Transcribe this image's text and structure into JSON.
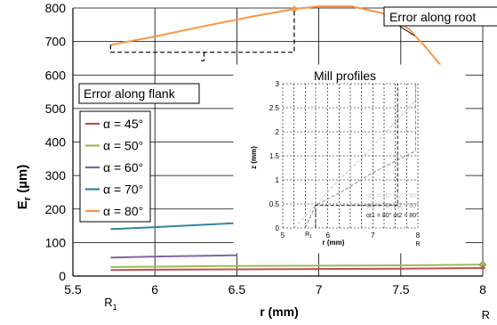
{
  "chart_data": [
    {
      "type": "line",
      "xlabel": "r (mm)",
      "ylabel": "Er (µm)",
      "ylabel_main": "E",
      "ylabel_sub": "r",
      "ylabel_unit": " (µm)",
      "xlim": [
        5.5,
        8.0
      ],
      "ylim": [
        0,
        800
      ],
      "x_ticks": [
        5.5,
        6,
        6.5,
        7,
        7.5,
        8
      ],
      "x_tick_labels": [
        "5.5",
        "6",
        "6.5",
        "7",
        "7.5",
        "8"
      ],
      "y_ticks": [
        0,
        100,
        200,
        300,
        400,
        500,
        600,
        700,
        800
      ],
      "y_tick_labels": [
        "0",
        "100",
        "200",
        "300",
        "400",
        "500",
        "600",
        "700",
        "800"
      ],
      "x_markers": [
        {
          "x": 5.73,
          "main": "R",
          "sub": "1"
        },
        {
          "x": 8.0,
          "main": "R",
          "sub": ""
        }
      ],
      "grid": true,
      "legend_position": "left",
      "series": [
        {
          "name": "α = 45°",
          "alpha_value": "45°",
          "color": "#c0504d",
          "x": [
            5.73,
            6.0,
            6.5,
            7.0,
            7.5,
            8.0
          ],
          "y": [
            18,
            19,
            20,
            21,
            22,
            24
          ]
        },
        {
          "name": "α = 50°",
          "alpha_value": "50°",
          "color": "#9bbb59",
          "x": [
            5.73,
            6.0,
            6.5,
            7.0,
            7.5,
            8.0
          ],
          "y": [
            27,
            28,
            30,
            31,
            32,
            34
          ]
        },
        {
          "name": "α = 60°",
          "alpha_value": "60°",
          "color": "#8064a2",
          "x": [
            5.73,
            6.0,
            6.5
          ],
          "y": [
            55,
            58,
            62
          ]
        },
        {
          "name": "α = 70°",
          "alpha_value": "70°",
          "color": "#31849b",
          "x": [
            5.73,
            6.0,
            6.5
          ],
          "y": [
            140,
            146,
            158
          ]
        },
        {
          "name": "α = 80°",
          "alpha_value": "80°",
          "color": "#f79646",
          "x": [
            5.73,
            6.0,
            6.3,
            6.6,
            6.85,
            7.0,
            7.2,
            7.4,
            7.55,
            7.65,
            7.75
          ],
          "y": [
            690,
            715,
            746,
            775,
            797,
            805,
            805,
            783,
            737,
            684,
            625
          ]
        }
      ],
      "annotations": [
        {
          "text": "Error along root"
        },
        {
          "text": "Error along flank"
        }
      ]
    },
    {
      "type": "line",
      "title": "Mill profiles",
      "xlabel": "r (mm)",
      "ylabel": "z (mm)",
      "xlim": [
        5.0,
        8.0
      ],
      "ylim": [
        0,
        3
      ],
      "x_ticks": [
        5,
        6,
        7,
        8
      ],
      "x_tick_labels": [
        "5",
        "6",
        "7",
        "8"
      ],
      "y_ticks": [
        0,
        0.5,
        1,
        1.5,
        2,
        2.5,
        3
      ],
      "y_tick_labels": [
        "0",
        "0.5",
        "1",
        "1.5",
        "2",
        "2.5",
        "3"
      ],
      "x_markers": [
        {
          "x": 5.73,
          "main": "R",
          "sub": "1"
        },
        {
          "x": 8.0,
          "main": "R",
          "sub": ""
        }
      ],
      "grid": true,
      "legend_position": "bottom-right",
      "series": [
        {
          "name": "αt1 = 45° αt2 = 80°",
          "a1": "45°",
          "a2": "80°",
          "color": "#c8c8c8",
          "x": [
            5.25,
            5.73,
            6.2,
            6.8,
            7.4,
            7.95,
            7.95
          ],
          "y": [
            0.0,
            0.47,
            0.95,
            1.5,
            2.1,
            2.65,
            3.0
          ]
        },
        {
          "name": "αt1 = 70° αt2 = 80°",
          "a1": "70°",
          "a2": "80°",
          "color": "#8c8c8c",
          "x": [
            5.5,
            5.73,
            6.3,
            7.0,
            7.95,
            7.95
          ],
          "y": [
            0.0,
            0.47,
            0.75,
            1.15,
            1.6,
            3.0
          ]
        },
        {
          "name": "αt1 = 80° αt2 = 80°",
          "a1": "80°",
          "a2": "80°",
          "color": "#1a1a1a",
          "x": [
            5.73,
            5.73,
            7.55,
            7.55
          ],
          "y": [
            0.0,
            0.47,
            0.47,
            3.0
          ]
        }
      ]
    }
  ]
}
